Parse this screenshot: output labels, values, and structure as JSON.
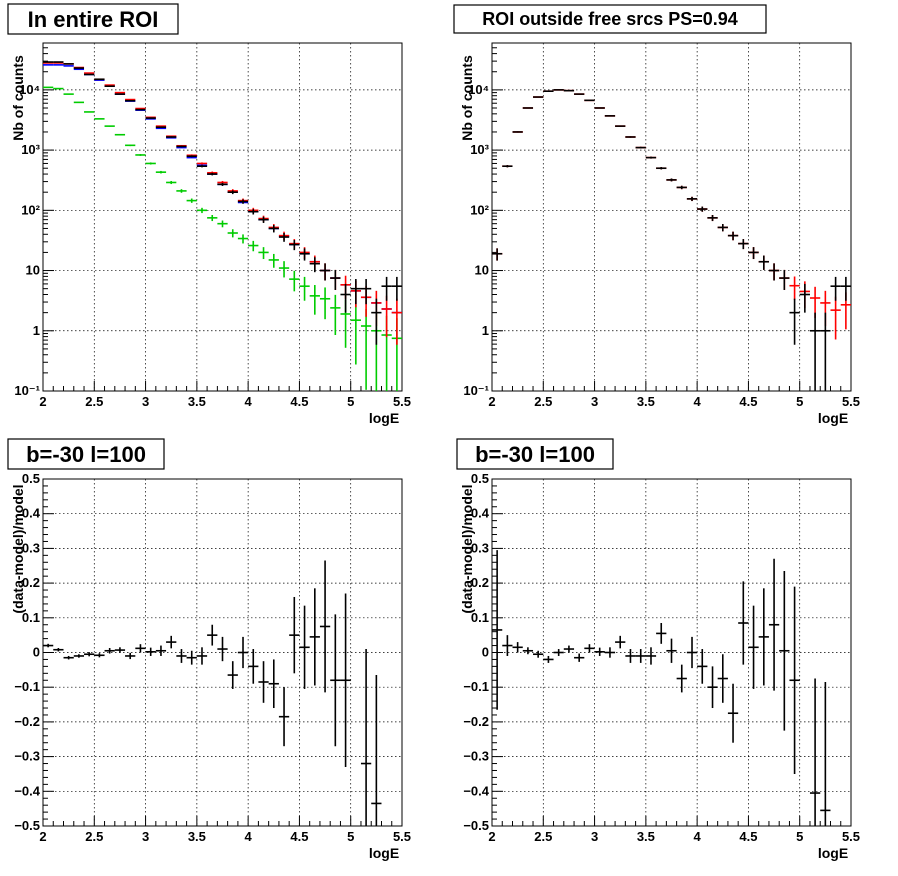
{
  "chart_data": [
    {
      "type": "scatter",
      "title": "In entire ROI",
      "xlabel": "logE",
      "ylabel": "Nb of counts",
      "xlim": [
        2,
        5.5
      ],
      "ylim": [
        0.1,
        60000
      ],
      "yscale": "log",
      "xticks": [
        2,
        2.5,
        3,
        3.5,
        4,
        4.5,
        5,
        5.5
      ],
      "xtick_labels": [
        "2",
        "2.5",
        "3",
        "3.5",
        "4",
        "4.5",
        "5",
        "5.5"
      ],
      "yticks": [
        0.1,
        1,
        10,
        100,
        1000,
        10000
      ],
      "ytick_labels": [
        "10⁻¹",
        "1",
        "10",
        "10²",
        "10³",
        "10⁴"
      ],
      "grid": true,
      "series": [
        {
          "color": "#00cc00",
          "err": "poisson",
          "y": [
            11000,
            10500,
            8500,
            6200,
            4300,
            3300,
            2500,
            1800,
            1200,
            830,
            600,
            430,
            290,
            210,
            145,
            100,
            75,
            60,
            42,
            34,
            26,
            20,
            15,
            11,
            7.2,
            5.5,
            3.8,
            3.4,
            2.4,
            1.9,
            1.5,
            1.2,
            1.0,
            0.85,
            0.75
          ]
        },
        {
          "color": "#0000ff",
          "err": "none",
          "y": [
            26000,
            26000,
            25000,
            22000,
            18000,
            14500,
            11500,
            8500,
            6500,
            4600,
            3300,
            2300,
            1600,
            1100,
            750,
            560,
            400,
            270,
            200,
            135,
            95,
            70,
            50,
            37,
            27,
            19,
            14,
            10,
            7.5,
            5.8,
            4.6,
            3.6,
            2.9,
            2.3,
            2.0
          ]
        },
        {
          "color": "#ff0000",
          "err": "poisson",
          "y": [
            28000,
            28000,
            27000,
            23500,
            19000,
            15000,
            12000,
            9000,
            6900,
            4900,
            3500,
            2500,
            1700,
            1180,
            820,
            600,
            420,
            290,
            210,
            145,
            100,
            73,
            52,
            38,
            28,
            20,
            14,
            10,
            7.5,
            5.8,
            4.6,
            3.6,
            2.9,
            2.3,
            2.0
          ]
        },
        {
          "color": "#000000",
          "err": "poisson",
          "y": [
            29000,
            29000,
            27000,
            23000,
            18000,
            15000,
            11500,
            8500,
            6600,
            4700,
            3400,
            2400,
            1650,
            1150,
            790,
            540,
            400,
            270,
            200,
            140,
            95,
            70,
            50,
            36,
            27,
            19,
            13,
            10,
            7.5,
            4,
            5,
            5,
            2,
            5.5,
            5.5
          ]
        }
      ]
    },
    {
      "type": "scatter",
      "title": "ROI outside free srcs PS=0.94",
      "xlabel": "logE",
      "ylabel": "Nb of counts",
      "xlim": [
        2,
        5.5
      ],
      "ylim": [
        0.1,
        60000
      ],
      "yscale": "log",
      "xticks": [
        2,
        2.5,
        3,
        3.5,
        4,
        4.5,
        5,
        5.5
      ],
      "xtick_labels": [
        "2",
        "2.5",
        "3",
        "3.5",
        "4",
        "4.5",
        "5",
        "5.5"
      ],
      "yticks": [
        0.1,
        1,
        10,
        100,
        1000,
        10000
      ],
      "ytick_labels": [
        "10⁻¹",
        "1",
        "10",
        "10²",
        "10³",
        "10⁴"
      ],
      "grid": true,
      "series": [
        {
          "color": "#ff0000",
          "err": "poisson",
          "y": [
            19,
            540,
            2000,
            5000,
            7600,
            9500,
            10000,
            9700,
            8500,
            6700,
            5000,
            3700,
            2500,
            1650,
            1100,
            750,
            500,
            320,
            240,
            155,
            105,
            75,
            52,
            38,
            28,
            20,
            14,
            10,
            7.5,
            5.6,
            4.5,
            3.5,
            2.9,
            2.2,
            2.7
          ]
        },
        {
          "color": "#000000",
          "err": "poisson",
          "y": [
            19,
            540,
            2000,
            5000,
            7600,
            9500,
            10000,
            9700,
            8500,
            6700,
            5000,
            3700,
            2500,
            1650,
            1100,
            750,
            500,
            320,
            240,
            155,
            105,
            75,
            52,
            38,
            28,
            20,
            14,
            10,
            7.5,
            2,
            4,
            1,
            1,
            5.5,
            5.5
          ]
        }
      ]
    },
    {
      "type": "scatter",
      "title": "b=-30 l=100",
      "xlabel": "logE",
      "ylabel": "(data-model)/model",
      "xlim": [
        2,
        5.5
      ],
      "ylim": [
        -0.5,
        0.5
      ],
      "yscale": "linear",
      "xticks": [
        2,
        2.5,
        3,
        3.5,
        4,
        4.5,
        5,
        5.5
      ],
      "xtick_labels": [
        "2",
        "2.5",
        "3",
        "3.5",
        "4",
        "4.5",
        "5",
        "5.5"
      ],
      "yticks": [
        -0.5,
        -0.4,
        -0.3,
        -0.2,
        -0.1,
        0,
        0.1,
        0.2,
        0.3,
        0.4,
        0.5
      ],
      "ytick_labels": [
        "−0.5",
        "−0.4",
        "−0.3",
        "−0.2",
        "−0.1",
        "0",
        "0.1",
        "0.2",
        "0.3",
        "0.4",
        "0.5"
      ],
      "grid": true,
      "series": [
        {
          "color": "#000000",
          "y": [
            0.02,
            0.008,
            -0.015,
            -0.01,
            -0.005,
            -0.008,
            0.005,
            0.007,
            -0.01,
            0.012,
            0.002,
            0.005,
            0.03,
            -0.01,
            -0.015,
            -0.01,
            0.05,
            0.01,
            -0.065,
            0.0,
            -0.04,
            -0.085,
            -0.09,
            -0.185,
            0.05,
            0.015,
            0.045,
            0.075,
            -0.08,
            -0.08,
            null,
            -0.32,
            -0.435,
            null,
            null
          ],
          "err": [
            0.005,
            0.005,
            0.005,
            0.005,
            0.006,
            0.006,
            0.008,
            0.008,
            0.009,
            0.012,
            0.012,
            0.015,
            0.018,
            0.02,
            0.02,
            0.025,
            0.03,
            0.035,
            0.04,
            0.045,
            0.05,
            0.06,
            0.07,
            0.085,
            0.11,
            0.12,
            0.14,
            0.19,
            0.19,
            0.25,
            null,
            0.33,
            0.37,
            null,
            null
          ]
        }
      ]
    },
    {
      "type": "scatter",
      "title": "b=-30 l=100",
      "xlabel": "logE",
      "ylabel": "(data-model)/model",
      "xlim": [
        2,
        5.5
      ],
      "ylim": [
        -0.5,
        0.5
      ],
      "yscale": "linear",
      "xticks": [
        2,
        2.5,
        3,
        3.5,
        4,
        4.5,
        5,
        5.5
      ],
      "xtick_labels": [
        "2",
        "2.5",
        "3",
        "3.5",
        "4",
        "4.5",
        "5",
        "5.5"
      ],
      "yticks": [
        -0.5,
        -0.4,
        -0.3,
        -0.2,
        -0.1,
        0,
        0.1,
        0.2,
        0.3,
        0.4,
        0.5
      ],
      "ytick_labels": [
        "−0.5",
        "−0.4",
        "−0.3",
        "−0.2",
        "−0.1",
        "0",
        "0.1",
        "0.2",
        "0.3",
        "0.4",
        "0.5"
      ],
      "grid": true,
      "series": [
        {
          "color": "#000000",
          "y": [
            0.065,
            0.02,
            0.015,
            0.005,
            -0.005,
            -0.02,
            0.0,
            0.01,
            -0.015,
            0.012,
            0.002,
            0.0,
            0.03,
            -0.01,
            -0.01,
            -0.01,
            0.055,
            0.005,
            -0.075,
            0.0,
            -0.04,
            -0.1,
            -0.075,
            -0.175,
            0.085,
            0.015,
            0.045,
            0.08,
            0.005,
            -0.08,
            null,
            -0.405,
            -0.455,
            null,
            null
          ],
          "err": [
            0.23,
            0.03,
            0.015,
            0.01,
            0.01,
            0.01,
            0.01,
            0.01,
            0.012,
            0.012,
            0.012,
            0.015,
            0.018,
            0.02,
            0.02,
            0.025,
            0.03,
            0.035,
            0.04,
            0.045,
            0.05,
            0.06,
            0.07,
            0.085,
            0.12,
            0.12,
            0.14,
            0.19,
            0.23,
            0.27,
            null,
            0.33,
            0.37,
            null,
            null
          ]
        }
      ]
    }
  ]
}
